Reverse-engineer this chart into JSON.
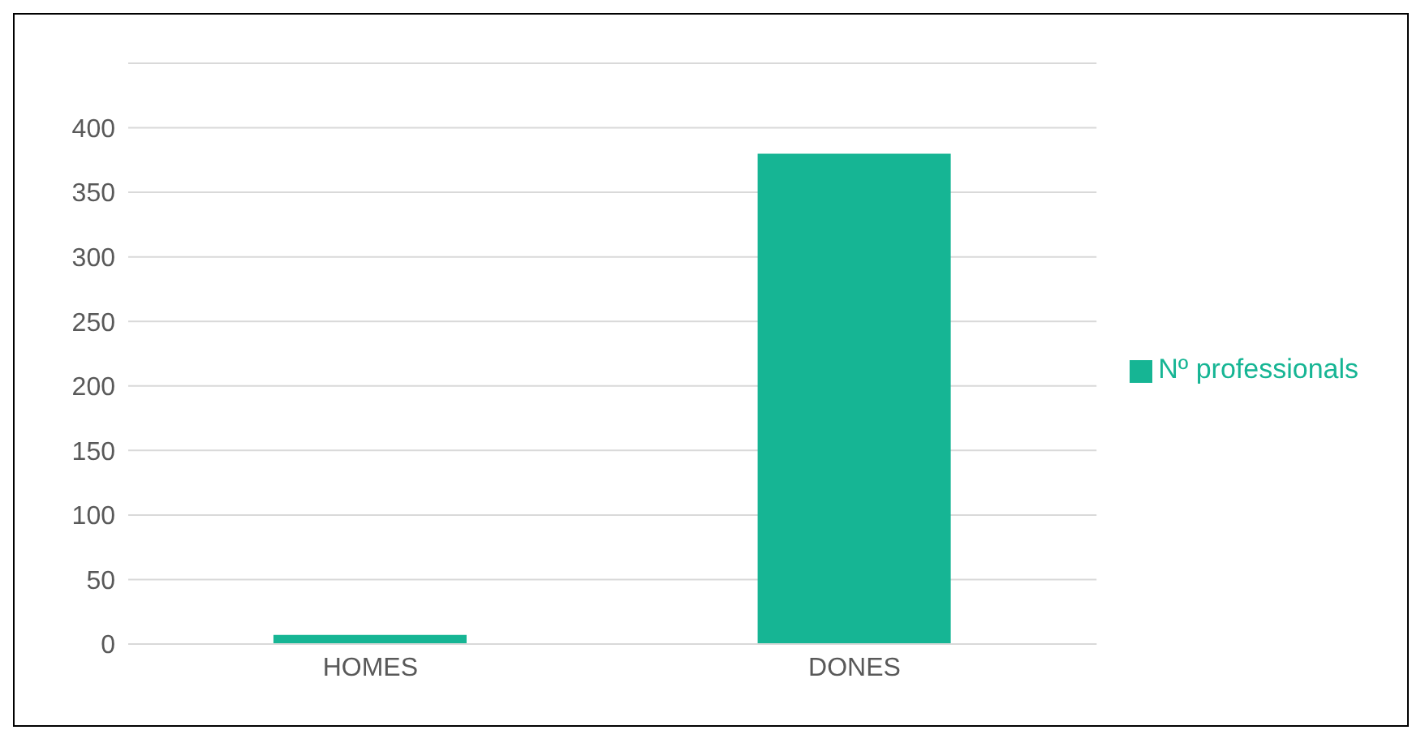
{
  "chart_data": {
    "type": "bar",
    "categories": [
      "HOMES",
      "DONES"
    ],
    "series": [
      {
        "name": "Nº professionals",
        "color": "#16b594",
        "values": [
          7,
          380
        ]
      }
    ],
    "ylim": [
      0,
      450
    ],
    "yticks": [
      0,
      50,
      100,
      150,
      200,
      250,
      300,
      350,
      400,
      {
        "value": 450,
        "label": null
      }
    ],
    "grid": "y",
    "legend": "right"
  }
}
